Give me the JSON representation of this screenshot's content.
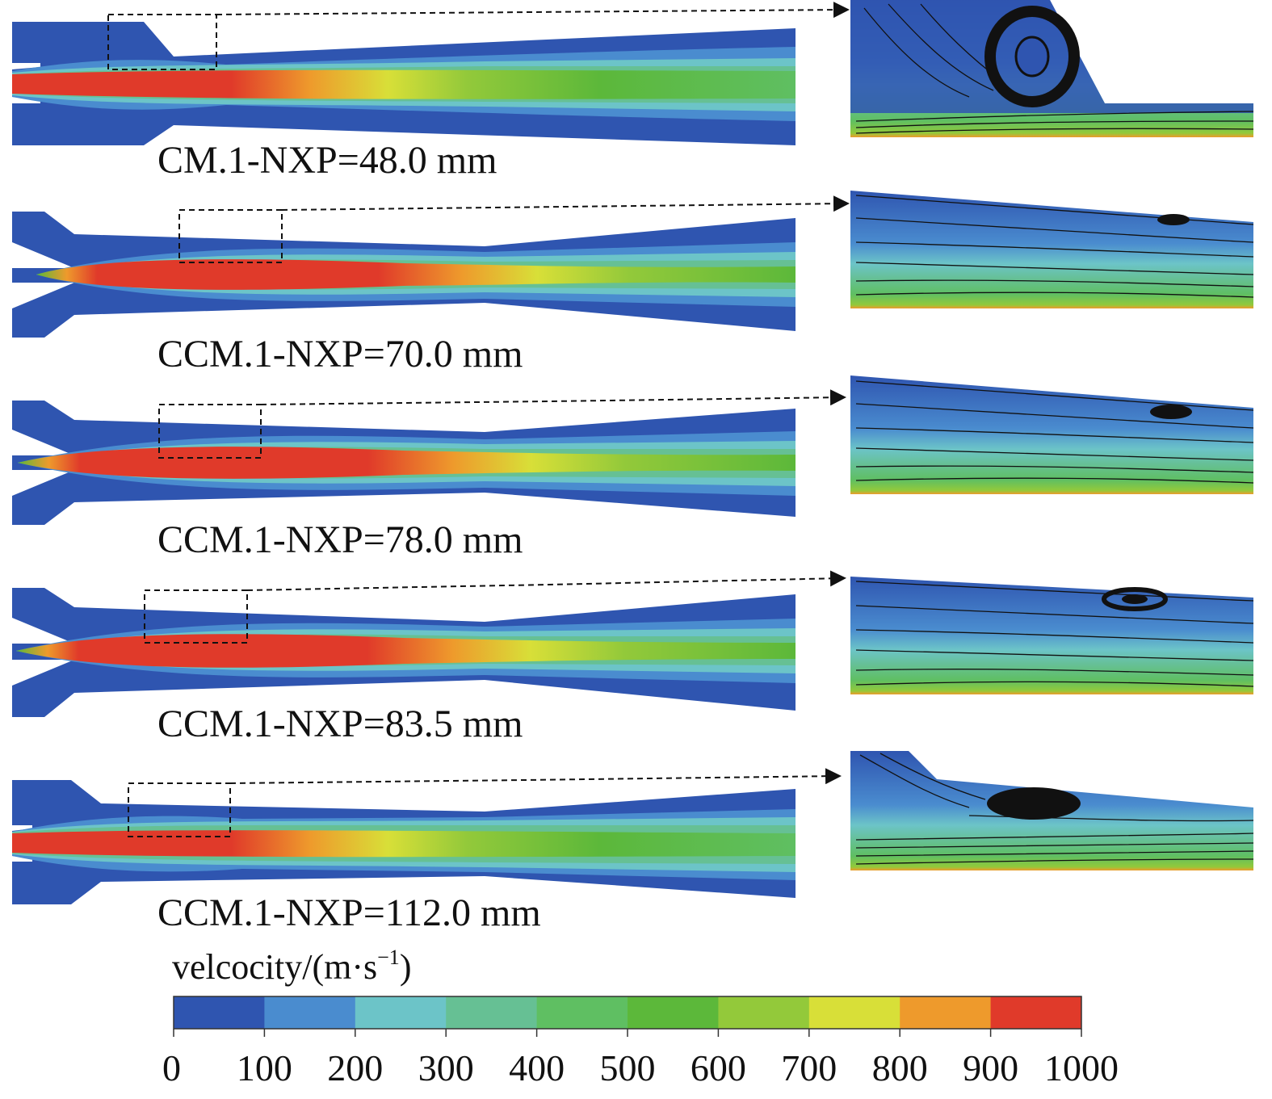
{
  "panels": [
    {
      "id": "p1",
      "caption": "CM.1-NXP=48.0 mm",
      "kind": "straight",
      "vortex": "ring"
    },
    {
      "id": "p2",
      "caption": "CCM.1-NXP=70.0 mm",
      "kind": "conical",
      "vortex": "small"
    },
    {
      "id": "p3",
      "caption": "CCM.1-NXP=78.0 mm",
      "kind": "conical",
      "vortex": "small"
    },
    {
      "id": "p4",
      "caption": "CCM.1-NXP=83.5 mm",
      "kind": "conical",
      "vortex": "medium"
    },
    {
      "id": "p5",
      "caption": "CCM.1-NXP=112.0 mm",
      "kind": "straight",
      "vortex": "large"
    }
  ],
  "legend": {
    "title_main": "velcocity/(m·s",
    "title_sup": "−1",
    "title_end": ")",
    "ticks": [
      "0",
      "100",
      "200",
      "300",
      "400",
      "500",
      "600",
      "700",
      "800",
      "900",
      "1000"
    ],
    "colors": [
      "#2f55b0",
      "#4a8ccf",
      "#6cc4c8",
      "#66c094",
      "#5fbf62",
      "#5cb83a",
      "#93c93a",
      "#d8df38",
      "#ee9a2c",
      "#e03a2a"
    ]
  }
}
